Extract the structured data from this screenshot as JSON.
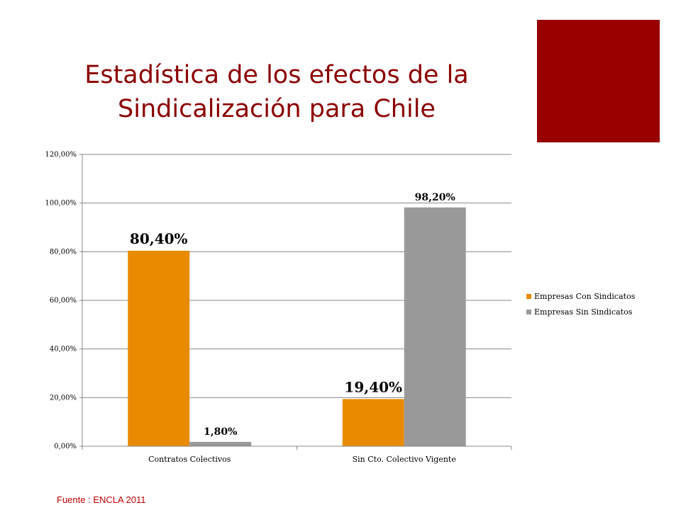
{
  "title": {
    "line1": "Estadística de los efectos de la",
    "line2": "Sindicalización para Chile"
  },
  "source": "Fuente : ENCLA 2011",
  "colors": {
    "title": "#8b0000",
    "red_block": "#990000",
    "series1": "#e98b00",
    "series2": "#999999",
    "source": "#c00000",
    "grid": "#888888"
  },
  "chart_data": {
    "type": "bar",
    "categories": [
      "Contratos Colectivos",
      "Sin Cto. Colectivo Vigente"
    ],
    "series": [
      {
        "name": "Empresas Con Sindicatos",
        "values": [
          80.4,
          19.4
        ],
        "labels": [
          "80,40%",
          "19,40%"
        ]
      },
      {
        "name": "Empresas Sin Sindicatos",
        "values": [
          1.8,
          98.2
        ],
        "labels": [
          "1,80%",
          "98,20%"
        ]
      }
    ],
    "yticks": [
      0,
      20,
      40,
      60,
      80,
      100,
      120
    ],
    "ytick_labels": [
      "0,00%",
      "20,00%",
      "40,00%",
      "60,00%",
      "80,00%",
      "100,00%",
      "120,00%"
    ],
    "ylim": [
      0,
      120
    ],
    "grid": true,
    "legend_position": "right"
  }
}
